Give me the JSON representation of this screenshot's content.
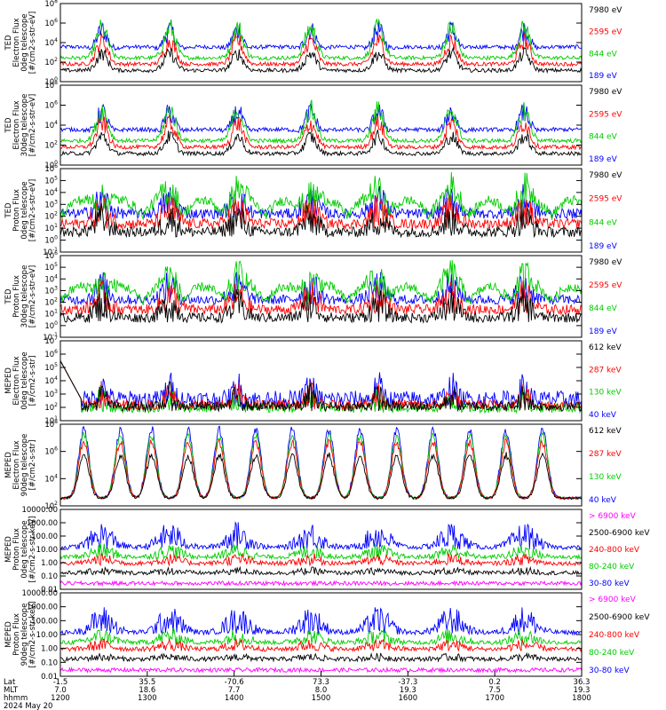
{
  "chart_data": {
    "type": "line",
    "title": "",
    "x_axis": {
      "rows": [
        {
          "label": "Lat",
          "values": [
            "-1.5",
            "35.5",
            "-70.6",
            "73.3",
            "-37.3",
            "0.2",
            "36.3"
          ]
        },
        {
          "label": "MLT",
          "values": [
            "7.0",
            "18.6",
            "7.7",
            "8.0",
            "19.3",
            "7.5",
            "19.3"
          ]
        },
        {
          "label": "hhmm",
          "values": [
            "1200",
            "1300",
            "1400",
            "1500",
            "1600",
            "1700",
            "1800"
          ]
        }
      ],
      "date": "2024 May 20",
      "range_hhmm": [
        "1200",
        "1800"
      ]
    },
    "panels": [
      {
        "ylabel": [
          "TED",
          "Electron Flux",
          "0deg telescope",
          "[#/cm2-s-str-eV]"
        ],
        "scale": "log",
        "ticks": [
          "10^0",
          "10^2",
          "10^4",
          "10^6",
          "10^8"
        ],
        "legend": [
          {
            "text": "7980 eV",
            "color": "#000000"
          },
          {
            "text": "2595 eV",
            "color": "#ff0000"
          },
          {
            "text": "844 eV",
            "color": "#00cc00"
          },
          {
            "text": "189 eV",
            "color": "#0000ff"
          }
        ]
      },
      {
        "ylabel": [
          "TED",
          "Electron Flux",
          "30deg telescope",
          "[#/cm2-s-str-eV]"
        ],
        "scale": "log",
        "ticks": [
          "10^0",
          "10^2",
          "10^4",
          "10^6",
          "10^8"
        ],
        "legend": [
          {
            "text": "7980 eV",
            "color": "#000000"
          },
          {
            "text": "2595 eV",
            "color": "#ff0000"
          },
          {
            "text": "844 eV",
            "color": "#00cc00"
          },
          {
            "text": "189 eV",
            "color": "#0000ff"
          }
        ]
      },
      {
        "ylabel": [
          "TED",
          "Proton Flux",
          "0deg telescope",
          "[#/cm2-s-str-eV]"
        ],
        "scale": "log",
        "ticks": [
          "10^-1",
          "10^0",
          "10^1",
          "10^2",
          "10^3",
          "10^4",
          "10^5",
          "10^6"
        ],
        "legend": [
          {
            "text": "7980 eV",
            "color": "#000000"
          },
          {
            "text": "2595 eV",
            "color": "#ff0000"
          },
          {
            "text": "844 eV",
            "color": "#00cc00"
          },
          {
            "text": "189 eV",
            "color": "#0000ff"
          }
        ]
      },
      {
        "ylabel": [
          "TED",
          "Proton Flux",
          "30deg telescope",
          "[#/cm2-s-str-eV]"
        ],
        "scale": "log",
        "ticks": [
          "10^-1",
          "10^0",
          "10^1",
          "10^2",
          "10^3",
          "10^4",
          "10^5",
          "10^6"
        ],
        "legend": [
          {
            "text": "7980 eV",
            "color": "#000000"
          },
          {
            "text": "2595 eV",
            "color": "#ff0000"
          },
          {
            "text": "844 eV",
            "color": "#00cc00"
          },
          {
            "text": "189 eV",
            "color": "#0000ff"
          }
        ]
      },
      {
        "ylabel": [
          "MEPED",
          "Electron Flux",
          "0deg telescope",
          "[#/cm2-s-str]"
        ],
        "scale": "log",
        "ticks": [
          "10^1",
          "10^2",
          "10^3",
          "10^4",
          "10^5",
          "10^6",
          "10^7"
        ],
        "legend": [
          {
            "text": "612 keV",
            "color": "#000000"
          },
          {
            "text": "287 keV",
            "color": "#ff0000"
          },
          {
            "text": "130 keV",
            "color": "#00cc00"
          },
          {
            "text": "40 keV",
            "color": "#0000ff"
          }
        ]
      },
      {
        "ylabel": [
          "MEPED",
          "Electron Flux",
          "90deg telescope",
          "[#/cm2-s-str]"
        ],
        "scale": "log",
        "ticks": [
          "10^2",
          "10^4",
          "10^6",
          "10^8"
        ],
        "legend": [
          {
            "text": "612 keV",
            "color": "#000000"
          },
          {
            "text": "287 keV",
            "color": "#ff0000"
          },
          {
            "text": "130 keV",
            "color": "#00cc00"
          },
          {
            "text": "40 keV",
            "color": "#0000ff"
          }
        ]
      },
      {
        "ylabel": [
          "MEPED",
          "Proton Flux",
          "0deg telescope",
          "[#/cm2-s-str-keV]"
        ],
        "scale": "log",
        "ticks": [
          "0.01",
          "0.10",
          "1.00",
          "10.00",
          "100.00",
          "1000.00",
          "10000.00"
        ],
        "legend": [
          {
            "text": "> 6900 keV",
            "color": "#ff00ff"
          },
          {
            "text": "2500-6900 keV",
            "color": "#000000"
          },
          {
            "text": "240-800 keV",
            "color": "#ff0000"
          },
          {
            "text": "80-240 keV",
            "color": "#00cc00"
          },
          {
            "text": "30-80 keV",
            "color": "#0000ff"
          }
        ]
      },
      {
        "ylabel": [
          "MEPED",
          "Proton Flux",
          "90deg telescope",
          "[#/cm2-s-str-keV]"
        ],
        "scale": "log",
        "ticks": [
          "0.01",
          "0.10",
          "1.00",
          "10.00",
          "100.00",
          "1000.00",
          "10000.00"
        ],
        "legend": [
          {
            "text": "> 6900 keV",
            "color": "#ff00ff"
          },
          {
            "text": "2500-6900 keV",
            "color": "#000000"
          },
          {
            "text": "240-800 keV",
            "color": "#ff0000"
          },
          {
            "text": "80-240 keV",
            "color": "#00cc00"
          },
          {
            "text": "30-80 keV",
            "color": "#0000ff"
          }
        ]
      }
    ]
  }
}
